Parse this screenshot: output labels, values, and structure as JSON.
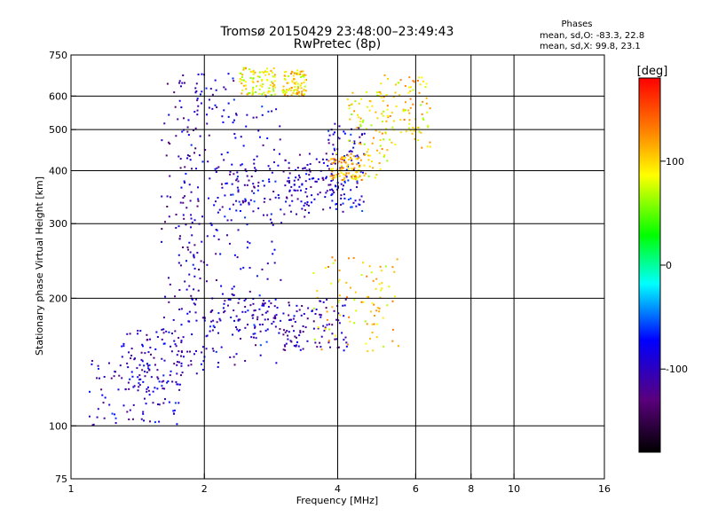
{
  "chart_data": {
    "type": "scatter",
    "title": "Tromsø 20150429 23:48:00–23:49:43",
    "subtitle": "RwPretec (8p)",
    "xlabel": "Frequency [MHz]",
    "ylabel": "Stationary phase Virtual Height [km]",
    "x_scale": "log",
    "y_scale": "log",
    "xlim": [
      1,
      16
    ],
    "ylim": [
      75,
      750
    ],
    "x_ticks": [
      1,
      2,
      4,
      6,
      8,
      10,
      16
    ],
    "x_tick_labels": [
      "1",
      "2",
      "4",
      "6",
      "8",
      "10",
      "16"
    ],
    "y_ticks": [
      75,
      100,
      200,
      300,
      400,
      500,
      600,
      750
    ],
    "y_tick_labels": [
      "75",
      "100",
      "200",
      "300",
      "400",
      "500",
      "600",
      "750"
    ],
    "grid_x": [
      2,
      4,
      6,
      8,
      10
    ],
    "grid_y": [
      100,
      200,
      300,
      400,
      500,
      600
    ],
    "grid": true,
    "colorbar": {
      "label": "[deg]",
      "range": [
        -180,
        180
      ],
      "ticks": [
        100,
        0,
        -100
      ],
      "tick_labels": [
        "100",
        "0",
        "-100"
      ],
      "colors": [
        "#000000",
        "#5a007d",
        "#0000ff",
        "#00ffff",
        "#00ff00",
        "#ffff00",
        "#ff8000",
        "#ff0000"
      ]
    },
    "phase_stats": {
      "heading": "Phases",
      "line_o": "mean, sd,O:  -83.3, 22.8",
      "line_x": "mean, sd,X:  99.8, 23.1"
    },
    "series": [
      {
        "name": "",
        "clusters": [
          {
            "x": [
              1.1,
              1.8
            ],
            "y": [
              100,
              145
            ],
            "phase": -95
          },
          {
            "x": [
              1.3,
              1.8
            ],
            "y": [
              120,
              170
            ],
            "phase": -100
          },
          {
            "x": [
              1.6,
              1.95
            ],
            "y": [
              130,
              690
            ],
            "phase": -110
          },
          {
            "x": [
              1.75,
              2.0
            ],
            "y": [
              135,
              690
            ],
            "phase": -100
          },
          {
            "x": [
              2.0,
              2.4
            ],
            "y": [
              135,
              680
            ],
            "phase": -95
          },
          {
            "x": [
              2.3,
              3.0
            ],
            "y": [
              140,
              600
            ],
            "phase": -90
          },
          {
            "x": [
              2.0,
              3.2
            ],
            "y": [
              160,
              200
            ],
            "phase": -100
          },
          {
            "x": [
              3.0,
              4.2
            ],
            "y": [
              150,
              200
            ],
            "phase": -110
          },
          {
            "x": [
              2.1,
              3.5
            ],
            "y": [
              310,
              420
            ],
            "phase": -95
          },
          {
            "x": [
              3.0,
              4.2
            ],
            "y": [
              320,
              440
            ],
            "phase": -100
          },
          {
            "x": [
              3.8,
              4.6
            ],
            "y": [
              320,
              520
            ],
            "phase": -90
          },
          {
            "x": [
              4.2,
              5.2
            ],
            "y": [
              380,
              620
            ],
            "phase": 90
          },
          {
            "x": [
              5.0,
              6.5
            ],
            "y": [
              450,
              680
            ],
            "phase": 100
          },
          {
            "x": [
              3.5,
              5.5
            ],
            "y": [
              150,
              250
            ],
            "phase": 100
          },
          {
            "x": [
              3.8,
              4.6
            ],
            "y": [
              380,
              440
            ],
            "phase": 110
          },
          {
            "x": [
              3.0,
              3.4
            ],
            "y": [
              600,
              690
            ],
            "phase": 100
          },
          {
            "x": [
              2.4,
              2.9
            ],
            "y": [
              600,
              700
            ],
            "phase": 90
          }
        ]
      }
    ]
  }
}
